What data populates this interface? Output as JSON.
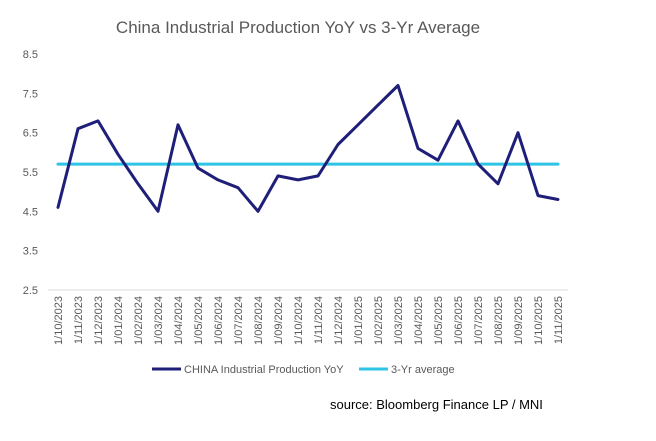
{
  "chart_data": {
    "type": "line",
    "title": "China Industrial Production YoY vs 3-Yr Average",
    "xlabel": "",
    "ylabel": "",
    "ylim": [
      2.5,
      8.5
    ],
    "yticks": [
      2.5,
      3.5,
      4.5,
      5.5,
      6.5,
      7.5,
      8.5
    ],
    "grid": false,
    "legend_position": "bottom",
    "categories": [
      "1/10/2023",
      "1/11/2023",
      "1/12/2023",
      "1/01/2024",
      "1/02/2024",
      "1/03/2024",
      "1/04/2024",
      "1/05/2024",
      "1/06/2024",
      "1/07/2024",
      "1/08/2024",
      "1/09/2024",
      "1/10/2024",
      "1/11/2024",
      "1/12/2024",
      "1/01/2025",
      "1/02/2025",
      "1/03/2025",
      "1/04/2025",
      "1/05/2025",
      "1/06/2025",
      "1/07/2025",
      "1/08/2025",
      "1/09/2025",
      "1/10/2025",
      "1/11/2025"
    ],
    "series": [
      {
        "name": "CHINA Industrial Production YoY",
        "color": "#1f1f7a",
        "values": [
          4.6,
          6.6,
          6.8,
          5.95,
          5.2,
          4.5,
          6.7,
          5.6,
          5.3,
          5.1,
          4.5,
          5.4,
          5.3,
          5.4,
          6.2,
          6.7,
          7.2,
          7.7,
          6.1,
          5.8,
          6.8,
          5.7,
          5.2,
          6.5,
          4.9,
          4.8
        ]
      },
      {
        "name": "3-Yr average",
        "color": "#2ec4e6",
        "values": [
          5.7,
          5.7,
          5.7,
          5.7,
          5.7,
          5.7,
          5.7,
          5.7,
          5.7,
          5.7,
          5.7,
          5.7,
          5.7,
          5.7,
          5.7,
          5.7,
          5.7,
          5.7,
          5.7,
          5.7,
          5.7,
          5.7,
          5.7,
          5.7,
          5.7,
          5.7
        ]
      }
    ]
  },
  "source": "source: Bloomberg Finance LP / MNI"
}
